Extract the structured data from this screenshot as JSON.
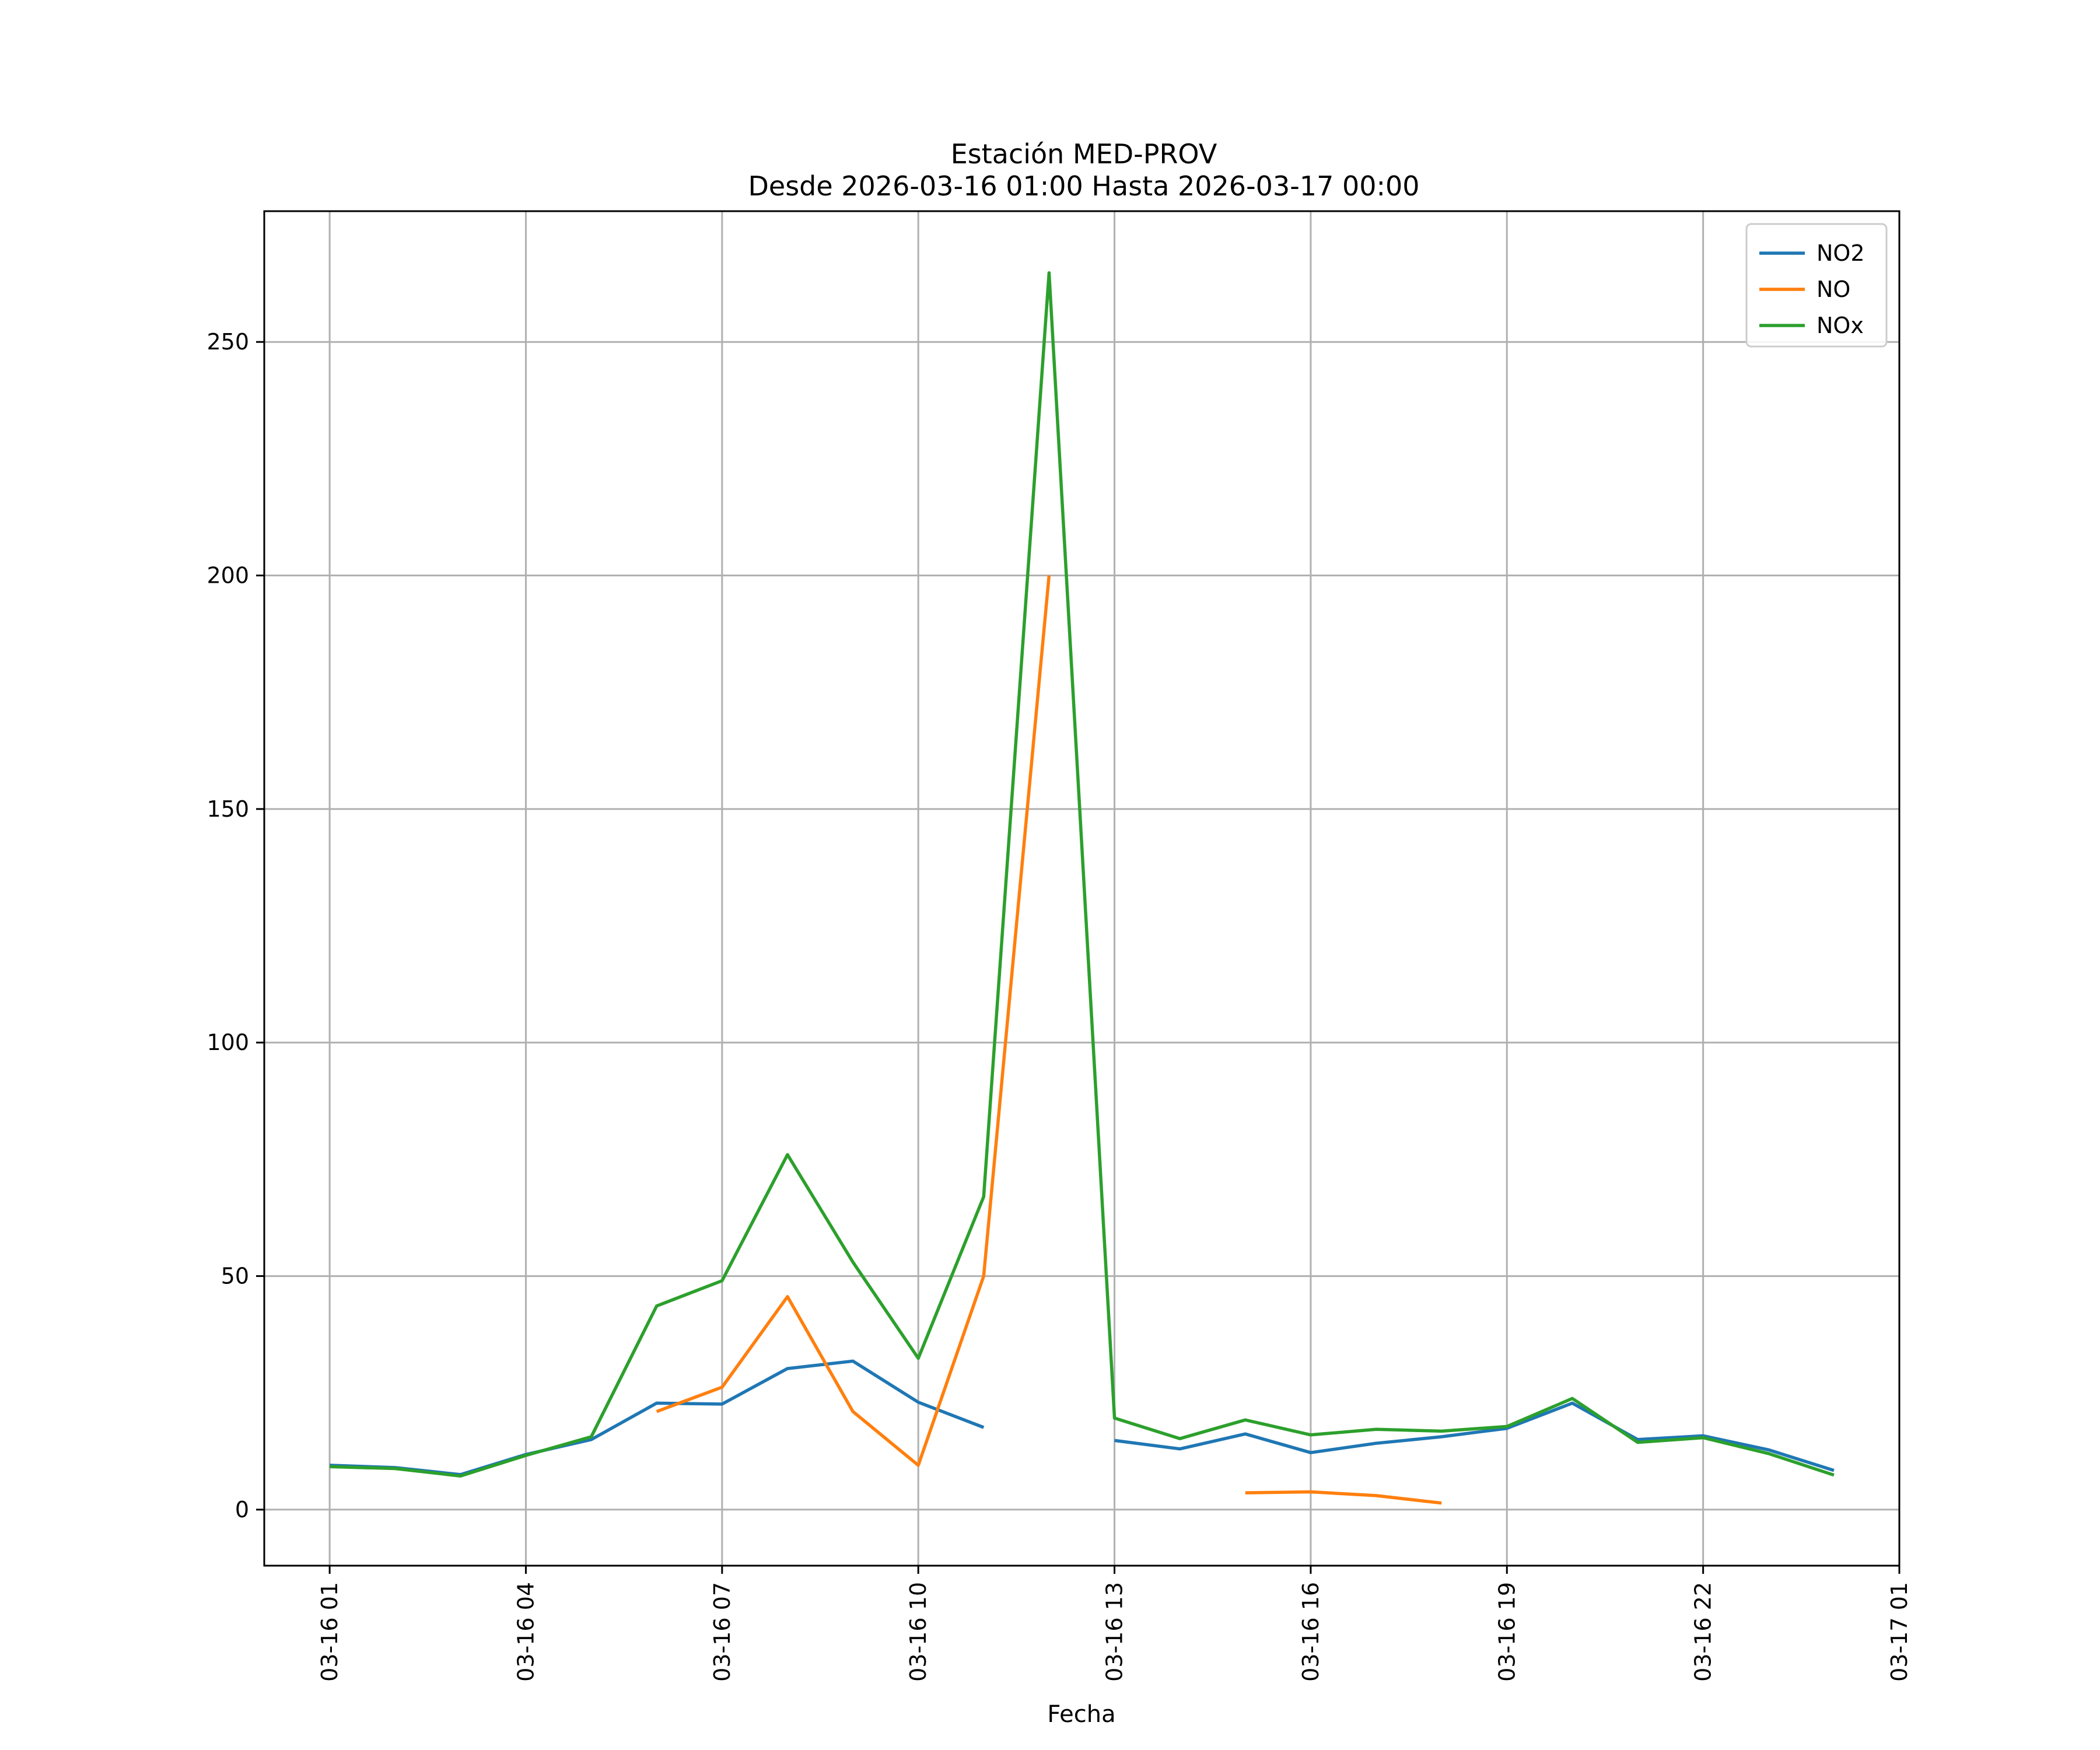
{
  "chart_data": {
    "type": "line",
    "title": "Estación MED-PROV",
    "subtitle": "Desde 2026-03-16 01:00 Hasta 2026-03-17 00:00",
    "xlabel": "Fecha",
    "ylabel": "",
    "x_unit": "hour",
    "x": [
      "03-16 01",
      "03-16 02",
      "03-16 03",
      "03-16 04",
      "03-16 05",
      "03-16 06",
      "03-16 07",
      "03-16 08",
      "03-16 09",
      "03-16 10",
      "03-16 11",
      "03-16 12",
      "03-16 13",
      "03-16 14",
      "03-16 15",
      "03-16 16",
      "03-16 17",
      "03-16 18",
      "03-16 19",
      "03-16 20",
      "03-16 21",
      "03-16 22",
      "03-16 23",
      "03-17 00"
    ],
    "x_ticks": [
      "03-16 01",
      "03-16 04",
      "03-16 07",
      "03-16 10",
      "03-16 13",
      "03-16 16",
      "03-16 19",
      "03-16 22",
      "03-17 01"
    ],
    "xlim": [
      "03-16 00:00",
      "03-17 01:00"
    ],
    "y_ticks": [
      0,
      50,
      100,
      150,
      200,
      250
    ],
    "ylim": [
      -12,
      278
    ],
    "grid": true,
    "legend_position": "top-right",
    "series": [
      {
        "name": "NO2",
        "color": "#1f77b4",
        "values": [
          9.5,
          9.0,
          7.5,
          11.8,
          15.0,
          22.8,
          22.6,
          30.2,
          31.8,
          23.0,
          17.6,
          null,
          14.8,
          13.0,
          16.2,
          12.2,
          14.2,
          15.6,
          17.4,
          22.8,
          15.0,
          15.8,
          12.8,
          8.4
        ]
      },
      {
        "name": "NO",
        "color": "#ff7f0e",
        "values": [
          null,
          null,
          null,
          null,
          null,
          21.0,
          26.2,
          45.6,
          21.0,
          9.5,
          50.0,
          200.0,
          null,
          null,
          3.6,
          3.8,
          3.0,
          1.4,
          null,
          null,
          null,
          null,
          null,
          null
        ]
      },
      {
        "name": "NOx",
        "color": "#2ca02c",
        "values": [
          9.2,
          8.8,
          7.2,
          11.6,
          15.6,
          43.6,
          49.0,
          76.0,
          53.0,
          32.4,
          67.0,
          264.8,
          19.6,
          15.2,
          19.2,
          16.0,
          17.2,
          16.8,
          17.8,
          23.8,
          14.4,
          15.4,
          12.0,
          7.4
        ]
      }
    ]
  }
}
